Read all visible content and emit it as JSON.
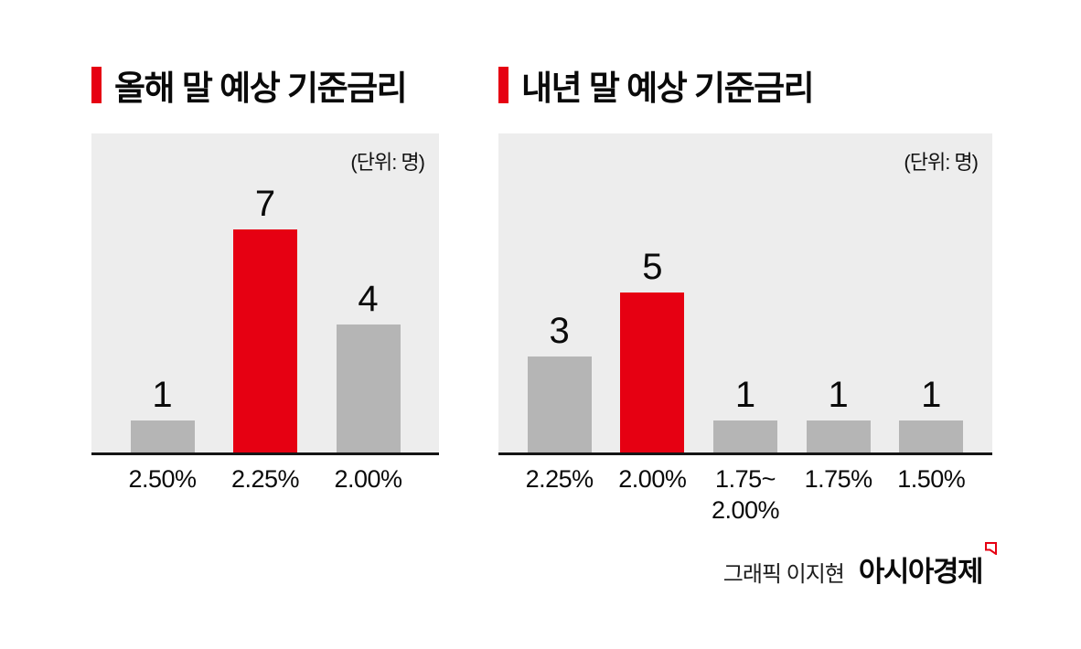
{
  "charts": [
    {
      "title": "올해 말 예상 기준금리",
      "unit": "(단위: 명)"
    },
    {
      "title": "내년 말 예상 기준금리",
      "unit": "(단위: 명)"
    }
  ],
  "chart_data": [
    {
      "type": "bar",
      "title": "올해 말 예상 기준금리",
      "unit": "(단위: 명)",
      "categories": [
        "2.50%",
        "2.25%",
        "2.00%"
      ],
      "values": [
        1,
        7,
        4
      ],
      "highlight_index": 1,
      "ylim": [
        0,
        10
      ],
      "grid": false,
      "legend": "none"
    },
    {
      "type": "bar",
      "title": "내년 말 예상 기준금리",
      "unit": "(단위: 명)",
      "categories": [
        "2.25%",
        "2.00%",
        "1.75~\n2.00%",
        "1.75%",
        "1.50%"
      ],
      "values": [
        3,
        5,
        1,
        1,
        1
      ],
      "highlight_index": 1,
      "ylim": [
        0,
        10
      ],
      "grid": false,
      "legend": "none"
    }
  ],
  "footer": {
    "credit": "그래픽 이지현",
    "brand": "아시아경제"
  },
  "colors": {
    "highlight": "#e60012",
    "bar": "#b5b5b5",
    "panel": "#ededed",
    "text": "#111111"
  }
}
